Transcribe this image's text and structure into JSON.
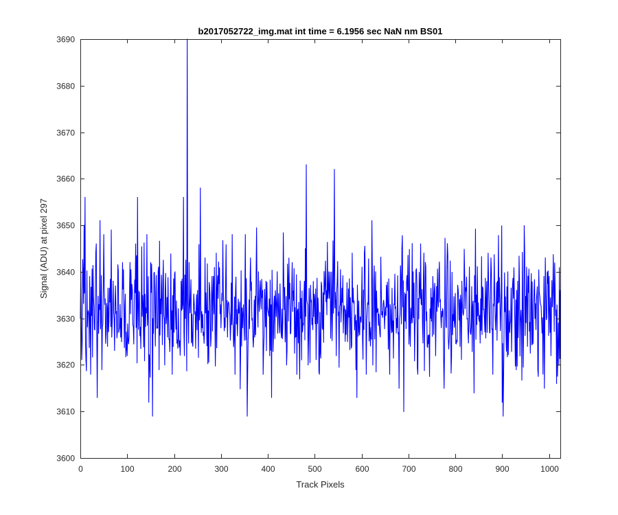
{
  "chart_data": {
    "type": "line",
    "title": "b2017052722_img.mat int time = 6.1956 sec  NaN nm BS01",
    "xlabel": "Track Pixels",
    "ylabel": "Signal (ADU) at pixel 297",
    "xlim": [
      0,
      1024
    ],
    "ylim": [
      3600,
      3690
    ],
    "xticks": [
      0,
      100,
      200,
      300,
      400,
      500,
      600,
      700,
      800,
      900,
      1000
    ],
    "yticks": [
      3600,
      3610,
      3620,
      3630,
      3640,
      3650,
      3660,
      3670,
      3680,
      3690
    ],
    "grid": false,
    "series": [
      {
        "color": "#0000ff",
        "baseline": 3632,
        "x": [
          0,
          4,
          8,
          10,
          12,
          20,
          22,
          34,
          36,
          40,
          42,
          46,
          50,
          52,
          58,
          70,
          88,
          90,
          100,
          104,
          106,
          118,
          122,
          130,
          142,
          146,
          150,
          154,
          166,
          168,
          172,
          176,
          180,
          186,
          196,
          202,
          210,
          220,
          222,
          224,
          228,
          230,
          232,
          240,
          250,
          256,
          260,
          266,
          278,
          290,
          300,
          310,
          314,
          324,
          330,
          336,
          346,
          352,
          356,
          360,
          372,
          380,
          390,
          396,
          404,
          408,
          420,
          430,
          440,
          452,
          462,
          470,
          480,
          482,
          486,
          500,
          510,
          530,
          542,
          546,
          554,
          570,
          580,
          588,
          590,
          600,
          606,
          610,
          614,
          620,
          622,
          624,
          630,
          640,
          650,
          660,
          670,
          676,
          680,
          686,
          690,
          700,
          704,
          710,
          720,
          726,
          740,
          752,
          770,
          776,
          782,
          790,
          810,
          820,
          832,
          840,
          850,
          870,
          880,
          890,
          900,
          902,
          904,
          912,
          930,
          944,
          954,
          968,
          976,
          984,
          990,
          1000,
          1004,
          1010,
          1016,
          1020,
          1024
        ],
        "y": [
          3630,
          3625,
          3650,
          3656,
          3621,
          3639,
          3618,
          3646,
          3613,
          3633,
          3651,
          3619,
          3648,
          3633,
          3624,
          3638,
          3625,
          3642,
          3622,
          3626,
          3642,
          3646,
          3656,
          3631,
          3648,
          3612,
          3642,
          3609,
          3640,
          3619,
          3631,
          3638,
          3620,
          3626,
          3618,
          3640,
          3626,
          3656,
          3622,
          3630,
          3690,
          3630,
          3642,
          3624,
          3636,
          3658,
          3628,
          3643,
          3624,
          3644,
          3628,
          3638,
          3626,
          3648,
          3618,
          3630,
          3628,
          3648,
          3609,
          3634,
          3626,
          3640,
          3618,
          3638,
          3622,
          3613,
          3640,
          3632,
          3620,
          3642,
          3618,
          3630,
          3645,
          3663,
          3620,
          3634,
          3618,
          3640,
          3662,
          3622,
          3633,
          3625,
          3644,
          3619,
          3613,
          3634,
          3644,
          3618,
          3633,
          3628,
          3651,
          3620,
          3640,
          3626,
          3631,
          3618,
          3633,
          3628,
          3615,
          3645,
          3610,
          3636,
          3624,
          3640,
          3618,
          3646,
          3624,
          3639,
          3628,
          3615,
          3641,
          3630,
          3624,
          3639,
          3627,
          3614,
          3630,
          3644,
          3618,
          3638,
          3612,
          3609,
          3628,
          3640,
          3619,
          3633,
          3624,
          3636,
          3619,
          3630,
          3615,
          3639,
          3622,
          3636,
          3616,
          3629,
          3636
        ]
      }
    ]
  }
}
